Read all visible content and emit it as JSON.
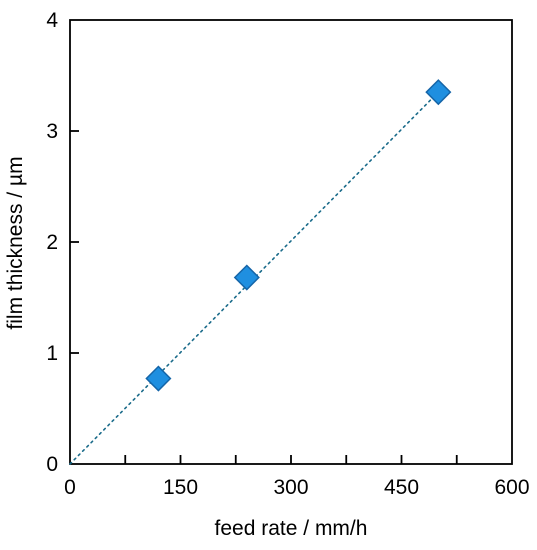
{
  "chart_data": {
    "type": "scatter",
    "title": "",
    "xlabel": "feed rate / mm/h",
    "ylabel": "film thickness / µm",
    "xlim": [
      0,
      600
    ],
    "ylim": [
      0,
      4
    ],
    "x_ticks": [
      0,
      150,
      300,
      450,
      600
    ],
    "x_minor_ticks": [
      75,
      225,
      375,
      525
    ],
    "y_ticks": [
      0,
      1,
      2,
      3,
      4
    ],
    "grid": false,
    "legend": "none",
    "series": [
      {
        "marker": "diamond",
        "color": "#1f8fe0",
        "edge_color": "#1565a8",
        "x": [
          120,
          240,
          500
        ],
        "y": [
          0.77,
          1.68,
          3.35
        ]
      }
    ],
    "trendline": {
      "style": "dotted",
      "color": "#1a6b8a",
      "x": [
        0,
        500
      ],
      "y": [
        0,
        3.35
      ]
    }
  }
}
